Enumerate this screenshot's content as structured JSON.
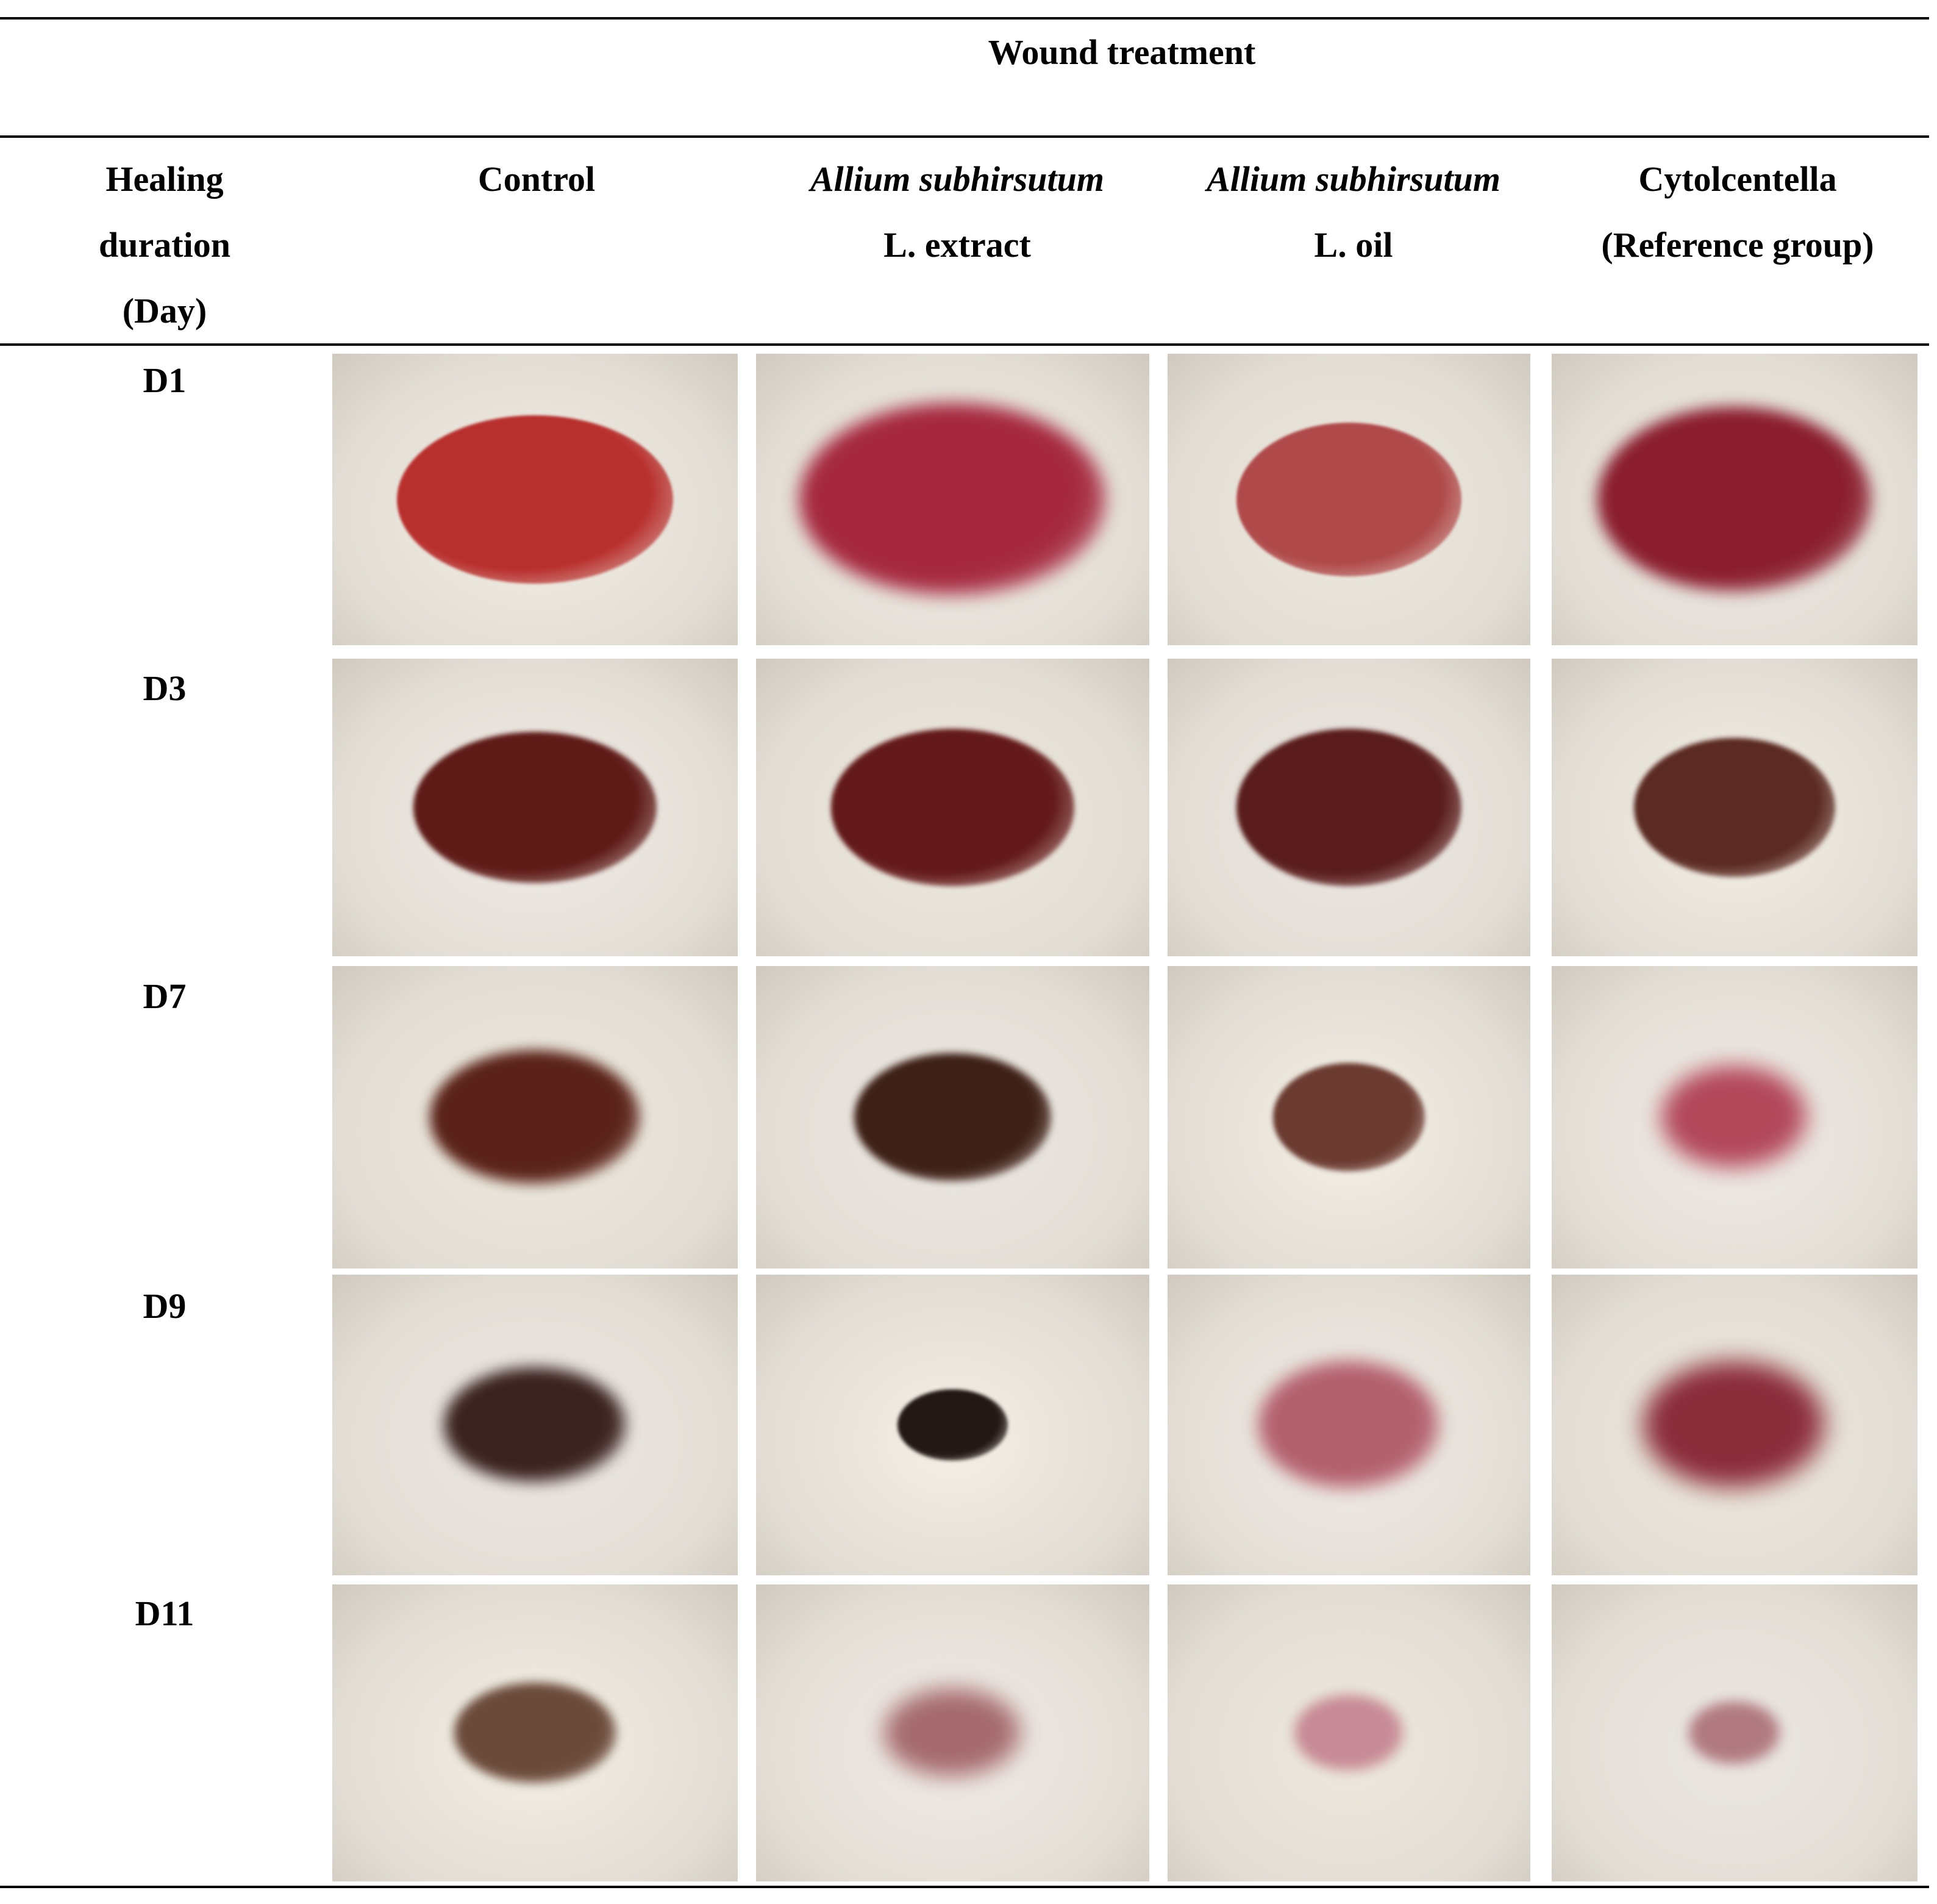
{
  "table": {
    "supertitle": "Wound treatment",
    "row_header": [
      "Healing",
      "duration",
      "(Day)"
    ],
    "columns": [
      {
        "line1": "Control",
        "line1_italic": false,
        "line2": ""
      },
      {
        "line1": "Allium subhirsutum",
        "line1_italic": true,
        "line2": "L. extract"
      },
      {
        "line1": "Allium subhirsutum",
        "line1_italic": true,
        "line2": "L. oil"
      },
      {
        "line1": "Cytolcentella",
        "line1_italic": false,
        "line2": "(Reference group)"
      }
    ],
    "days": [
      "D1",
      "D3",
      "D7",
      "D9",
      "D11"
    ]
  },
  "photos": {
    "description_colors": {
      "fur": "#f3efe6",
      "fresh_wound": "#a8262c",
      "scab": "#4a1c18"
    }
  }
}
